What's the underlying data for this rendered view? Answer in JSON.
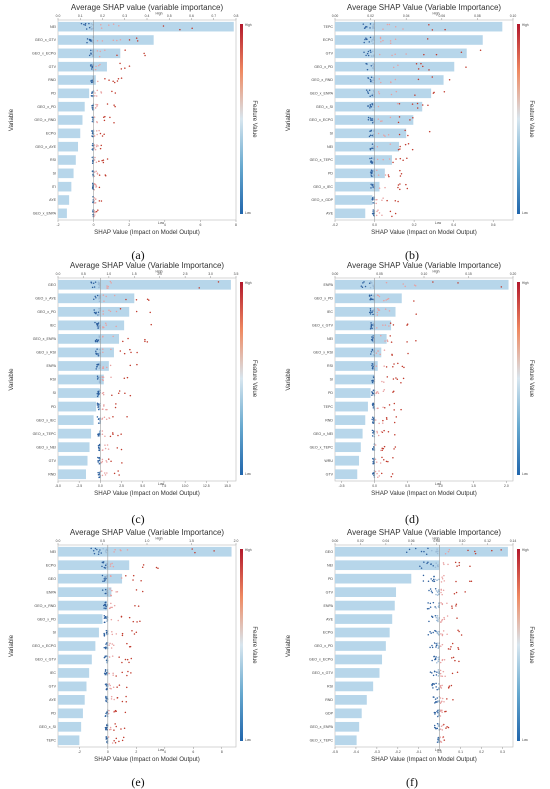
{
  "chart_data": [
    {
      "type": "bar",
      "panel_label": "(a)",
      "title": "Average SHAP value (variable importance)",
      "xlabel": "SHAP Value (Impact on Model Output)",
      "ylabel": "Variable",
      "colorbar_label": "Feature Value",
      "colorbar_high": "High",
      "colorbar_low": "Low",
      "top_label_mid": "High",
      "bottom_label_mid": "Low",
      "bar_xlim": [
        0,
        0.8
      ],
      "bar_ticks": [
        "0.0",
        "0.1",
        "0.2",
        "0.3",
        "0.4",
        "0.5",
        "0.6",
        "0.7",
        "0.8"
      ],
      "shap_xlim": [
        -2,
        8
      ],
      "shap_ticks": [
        "-2",
        "0",
        "2",
        "4",
        "6",
        "8"
      ],
      "categories": [
        "NEI",
        "GEO_x_GTV",
        "GEO_x_ECPG",
        "GTV",
        "RND",
        "PD",
        "GEO_x_PD",
        "GEO_x_RND",
        "ECPG",
        "GEO_x_AYE",
        "RSI",
        "SI",
        "ITI",
        "AYE",
        "GEO_x_ENPA"
      ],
      "values": [
        0.79,
        0.43,
        0.28,
        0.22,
        0.17,
        0.14,
        0.12,
        0.11,
        0.1,
        0.09,
        0.08,
        0.07,
        0.06,
        0.05,
        0.04
      ]
    },
    {
      "type": "bar",
      "panel_label": "(b)",
      "title": "Average SHAP Value (Variable Importance)",
      "xlabel": "SHAP Value (Impact on Model Output)",
      "ylabel": "Variable",
      "colorbar_label": "Feature Value",
      "colorbar_high": "High",
      "colorbar_low": "Low",
      "top_label_mid": "High",
      "bottom_label_mid": "Low",
      "bar_xlim": [
        0,
        0.1
      ],
      "bar_ticks": [
        "0.00",
        "0.02",
        "0.04",
        "0.06",
        "0.08",
        "0.10"
      ],
      "shap_xlim": [
        -0.2,
        0.7
      ],
      "shap_ticks": [
        "-0.2",
        "0.0",
        "0.2",
        "0.4",
        "0.6"
      ],
      "categories": [
        "TEPC",
        "ECPG",
        "GTV",
        "GEO_x_PD",
        "GEO_x_RND",
        "GEO_x_ENPA",
        "GEO_x_SI",
        "GEO_x_ECPG",
        "SI",
        "NEI",
        "GEO_x_TEPC",
        "PD",
        "GEO_x_IEC",
        "GEO_x_GDP",
        "AYE"
      ],
      "values": [
        0.094,
        0.083,
        0.074,
        0.067,
        0.061,
        0.054,
        0.049,
        0.044,
        0.04,
        0.036,
        0.032,
        0.028,
        0.025,
        0.021,
        0.017
      ]
    },
    {
      "type": "bar",
      "panel_label": "(c)",
      "title": "Average SHAP Value (Variable Importance)",
      "xlabel": "SHAP Value (Impact on Model Output)",
      "ylabel": "Variable",
      "colorbar_label": "Feature Value",
      "colorbar_high": "High",
      "colorbar_low": "Low",
      "top_label_mid": "High",
      "bottom_label_mid": "Low",
      "bar_xlim": [
        0,
        3.5
      ],
      "bar_ticks": [
        "0.0",
        "0.5",
        "1.0",
        "1.5",
        "2.0",
        "2.5",
        "3.0",
        "3.5"
      ],
      "shap_xlim": [
        -5,
        16
      ],
      "shap_ticks": [
        "-5.0",
        "-2.5",
        "0.0",
        "2.5",
        "5.0",
        "7.5",
        "10.0",
        "12.5",
        "15.0"
      ],
      "categories": [
        "GEO",
        "GEO_x_AYE",
        "GEO_x_PD",
        "IEC",
        "GEO_x_ENPA",
        "GEO_x_RSI",
        "ENPA",
        "RSI",
        "SI",
        "PD",
        "GEO_x_IEC",
        "GEO_x_TEPC",
        "GEO_x_NEI",
        "GTV",
        "RND"
      ],
      "values": [
        3.4,
        1.5,
        1.4,
        1.3,
        1.2,
        1.1,
        1.0,
        0.9,
        0.82,
        0.75,
        0.7,
        0.65,
        0.62,
        0.58,
        0.55
      ]
    },
    {
      "type": "bar",
      "panel_label": "(d)",
      "title": "Average SHAP Value (Variable Importance)",
      "xlabel": "SHAP Value (Impact on Model Output)",
      "ylabel": "Variable",
      "colorbar_label": "Feature Value",
      "colorbar_high": "High",
      "colorbar_low": "Low",
      "top_label_mid": "High",
      "bottom_label_mid": "Low",
      "bar_xlim": [
        0,
        0.2
      ],
      "bar_ticks": [
        "0.00",
        "0.05",
        "0.10",
        "0.15",
        "0.20"
      ],
      "shap_xlim": [
        -0.6,
        2.1
      ],
      "shap_ticks": [
        "-0.5",
        "0.0",
        "0.5",
        "1.0",
        "1.5",
        "2.0"
      ],
      "categories": [
        "ENPA",
        "GEO_x_PD",
        "IEC",
        "GEO_x_GTV",
        "NEI",
        "GEO_x_RSI",
        "RSI",
        "SI",
        "PD",
        "TEPC",
        "RND",
        "GEO_x_NEI",
        "GEO_x_TEPC",
        "WRU",
        "GTV"
      ],
      "values": [
        0.195,
        0.075,
        0.068,
        0.063,
        0.058,
        0.052,
        0.048,
        0.044,
        0.04,
        0.037,
        0.034,
        0.031,
        0.029,
        0.027,
        0.025
      ]
    },
    {
      "type": "bar",
      "panel_label": "(e)",
      "title": "Average SHAP Value (Variable Importance)",
      "xlabel": "SHAP Value (Impact on Model Output)",
      "ylabel": "Variable",
      "colorbar_label": "Feature Value",
      "colorbar_high": "High",
      "colorbar_low": "Low",
      "top_label_mid": "High",
      "bottom_label_mid": "Low",
      "bar_xlim": [
        0,
        2.0
      ],
      "bar_ticks": [
        "0.0",
        "0.5",
        "1.0",
        "1.5",
        "2.0"
      ],
      "shap_xlim": [
        -3.5,
        9
      ],
      "shap_ticks": [
        "-2",
        "0",
        "2",
        "4",
        "6",
        "8"
      ],
      "categories": [
        "NEI",
        "ECPG",
        "GEO",
        "ENPA",
        "GEO_x_RND",
        "GEO_x_PD",
        "SI",
        "GEO_x_ECPG",
        "GEO_x_GTV",
        "IEC",
        "GTV",
        "AYE",
        "PD",
        "GEO_x_SI",
        "TEPC"
      ],
      "values": [
        1.95,
        0.8,
        0.72,
        0.6,
        0.55,
        0.5,
        0.46,
        0.42,
        0.38,
        0.35,
        0.32,
        0.3,
        0.28,
        0.26,
        0.24
      ]
    },
    {
      "type": "bar",
      "panel_label": "(f)",
      "title": "Average SHAP Value (Variable Importance)",
      "xlabel": "SHAP Value (Impact on Model Output)",
      "ylabel": "Variable",
      "colorbar_label": "Feature Value",
      "colorbar_high": "High",
      "colorbar_low": "Low",
      "top_label_mid": "High",
      "bottom_label_mid": "Low",
      "bar_xlim": [
        0,
        0.14
      ],
      "bar_ticks": [
        "0.00",
        "0.02",
        "0.04",
        "0.06",
        "0.08",
        "0.10",
        "0.12",
        "0.14"
      ],
      "shap_xlim": [
        -0.5,
        0.35
      ],
      "shap_ticks": [
        "-0.5",
        "-0.4",
        "-0.3",
        "-0.2",
        "-0.1",
        "0.0",
        "0.1",
        "0.2",
        "0.3"
      ],
      "categories": [
        "GEO",
        "NEI",
        "PD",
        "GTV",
        "ENPA",
        "AYE",
        "ECPG",
        "GEO_x_PD",
        "GEO_x_ECPG",
        "GEO_x_GTV",
        "RSI",
        "RND",
        "GDP",
        "GEO_x_ENPA",
        "GEO_x_TEPC"
      ],
      "values": [
        0.136,
        0.082,
        0.06,
        0.048,
        0.047,
        0.045,
        0.043,
        0.04,
        0.037,
        0.035,
        0.03,
        0.025,
        0.021,
        0.019,
        0.017
      ]
    }
  ]
}
